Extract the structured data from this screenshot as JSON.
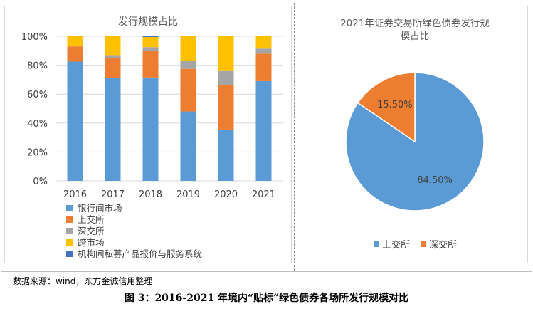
{
  "chart_data": [
    {
      "type": "bar",
      "stacked": true,
      "percent": true,
      "title": "发行规模占比",
      "categories": [
        "2016",
        "2017",
        "2018",
        "2019",
        "2020",
        "2021"
      ],
      "yticks": [
        "0%",
        "20%",
        "40%",
        "60%",
        "80%",
        "100%"
      ],
      "ylim": [
        0,
        100
      ],
      "grid": true,
      "legend_position": "bottom",
      "series": [
        {
          "name": "银行间市场",
          "color": "#5b9bd5",
          "values": [
            82.5,
            71,
            71.5,
            48,
            35.5,
            69
          ]
        },
        {
          "name": "上交所",
          "color": "#ed7d31",
          "values": [
            10.5,
            14,
            18.5,
            29.5,
            30.5,
            19
          ]
        },
        {
          "name": "深交所",
          "color": "#a5a5a5",
          "values": [
            0,
            2,
            2.5,
            5.5,
            10,
            3.5
          ]
        },
        {
          "name": "跨市场",
          "color": "#ffc000",
          "values": [
            7,
            13,
            7,
            17,
            24,
            8.5
          ]
        },
        {
          "name": "机构间私募产品报价与服务系统",
          "color": "#4472c4",
          "values": [
            0,
            0,
            0.5,
            0,
            0,
            0
          ]
        }
      ]
    },
    {
      "type": "pie",
      "title": "2021年证券交易所绿色债券发行规模占比",
      "title_lines": [
        "2021年证券交易所绿色债券发行规",
        "模占比"
      ],
      "legend_position": "bottom",
      "slices": [
        {
          "name": "上交所",
          "value": 84.5,
          "label": "84.50%",
          "color": "#5b9bd5"
        },
        {
          "name": "深交所",
          "value": 15.5,
          "label": "15.50%",
          "color": "#ed7d31"
        }
      ]
    }
  ],
  "source_text": "数据来源：wind，东方金诚信用整理",
  "caption": "图 3：2016-2021 年境内“贴标”绿色债券各场所发行规模对比"
}
